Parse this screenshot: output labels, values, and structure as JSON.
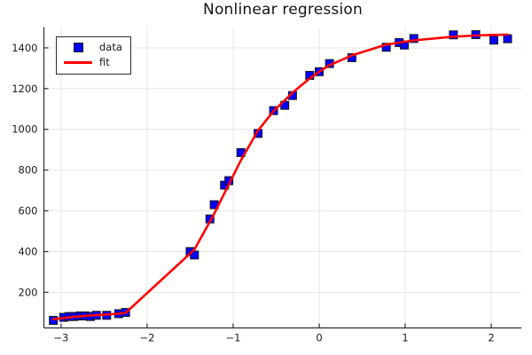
{
  "title": "Nonlinear regression",
  "legend": {
    "items": [
      {
        "label": "data",
        "swatch": "square-marker",
        "color": "#0000ff"
      },
      {
        "label": "fit",
        "swatch": "line",
        "color": "#ff0000"
      }
    ]
  },
  "colors": {
    "data_marker_fill": "#0000ff",
    "data_marker_stroke": "#1a1a1a",
    "fit_line": "#ff0000",
    "grid": "#e7e7e7",
    "axis": "#2e2e2e",
    "tick_text": "#1c1c1c",
    "background": "#ffffff"
  },
  "chart_data": {
    "type": "scatter",
    "title": "Nonlinear regression",
    "xlabel": "",
    "ylabel": "",
    "xlim": [
      -3.2,
      2.35
    ],
    "ylim": [
      25,
      1500
    ],
    "xticks": [
      -3,
      -2,
      -1,
      0,
      1,
      2
    ],
    "yticks": [
      200,
      400,
      600,
      800,
      1000,
      1200,
      1400
    ],
    "grid": true,
    "legend_position": "top-left",
    "series": [
      {
        "name": "data",
        "type": "scatter",
        "marker": "square",
        "color": "#0000ff",
        "x": [
          -3.09,
          -2.97,
          -2.91,
          -2.85,
          -2.78,
          -2.72,
          -2.66,
          -2.59,
          -2.47,
          -2.33,
          -2.25,
          -1.5,
          -1.45,
          -1.27,
          -1.22,
          -1.1,
          -1.05,
          -0.91,
          -0.71,
          -0.53,
          -0.4,
          -0.31,
          -0.11,
          0.0,
          0.12,
          0.38,
          0.78,
          0.93,
          0.99,
          1.1,
          1.56,
          1.82,
          2.03,
          2.19
        ],
        "y": [
          62,
          77,
          81,
          81,
          84,
          84,
          81,
          87,
          87,
          95,
          101,
          400,
          383,
          560,
          630,
          726,
          748,
          886,
          980,
          1092,
          1118,
          1166,
          1265,
          1283,
          1323,
          1352,
          1403,
          1426,
          1414,
          1446,
          1464,
          1465,
          1438,
          1445
        ]
      },
      {
        "name": "fit",
        "type": "line",
        "color": "#ff0000",
        "x": [
          -3.09,
          -2.97,
          -2.91,
          -2.85,
          -2.78,
          -2.72,
          -2.66,
          -2.59,
          -2.47,
          -2.33,
          -2.25,
          -1.5,
          -1.45,
          -1.27,
          -1.22,
          -1.1,
          -1.05,
          -0.91,
          -0.71,
          -0.53,
          -0.4,
          -0.31,
          -0.11,
          0.0,
          0.12,
          0.38,
          0.78,
          0.93,
          0.99,
          1.1,
          1.56,
          1.82,
          2.03,
          2.19
        ],
        "y": [
          68,
          74,
          77,
          80,
          82,
          84,
          86,
          88,
          91,
          95,
          99,
          390,
          410,
          548,
          586,
          688,
          730,
          848,
          995,
          1090,
          1143,
          1180,
          1250,
          1283,
          1315,
          1363,
          1416,
          1426,
          1430,
          1437,
          1455,
          1461,
          1464,
          1465
        ]
      }
    ]
  }
}
